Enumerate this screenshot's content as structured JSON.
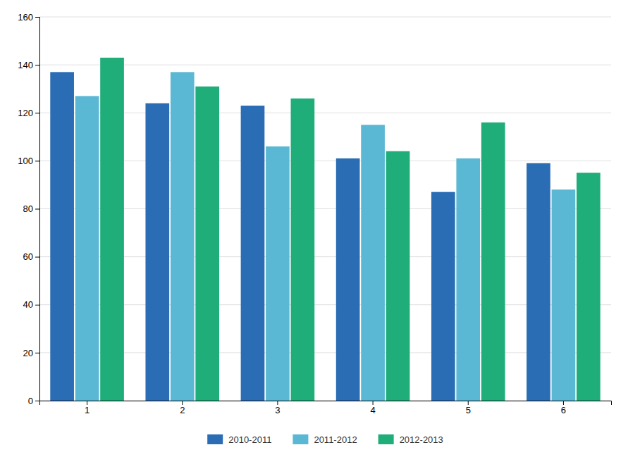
{
  "chart_data": {
    "type": "bar",
    "categories": [
      "1",
      "2",
      "3",
      "4",
      "5",
      "6"
    ],
    "series": [
      {
        "name": "2010-2011",
        "color": "#2B6DB5",
        "values": [
          137,
          124,
          123,
          101,
          87,
          99
        ]
      },
      {
        "name": "2011-2012",
        "color": "#5BB8D4",
        "values": [
          127,
          137,
          106,
          115,
          101,
          88
        ]
      },
      {
        "name": "2012-2013",
        "color": "#1FAD7A",
        "values": [
          143,
          131,
          126,
          104,
          116,
          95
        ]
      }
    ],
    "ylim": [
      0,
      160
    ],
    "yticks": [
      0,
      20,
      40,
      60,
      80,
      100,
      120,
      140,
      160
    ],
    "grid": true,
    "legend": "bottom"
  }
}
